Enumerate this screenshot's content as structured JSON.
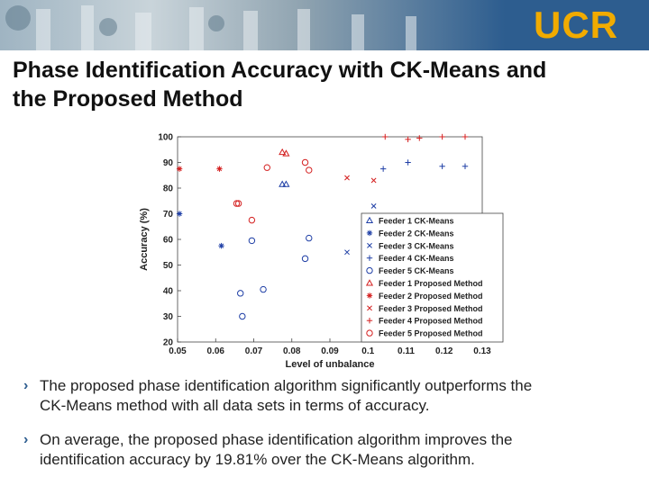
{
  "header": {
    "logo_text": "UCR",
    "brand_color": "#2d5d8f",
    "logo_color": "#f1ab00"
  },
  "slide": {
    "title_line1": "Phase Identification Accuracy with CK-Means and",
    "title_line2": "the Proposed Method"
  },
  "bullets": [
    {
      "icon": "chevron-right-icon",
      "line1": "The proposed phase identification algorithm significantly outperforms the",
      "line2": "CK-Means method with all data sets in terms of accuracy."
    },
    {
      "icon": "chevron-right-icon",
      "line1": "On average, the proposed phase identification algorithm improves the",
      "line2": "identification accuracy by 19.81% over the CK-Means algorithm."
    }
  ],
  "chart_data": {
    "type": "scatter",
    "xlabel": "Level of unbalance",
    "ylabel": "Accuracy (%)",
    "xlim": [
      0.05,
      0.13
    ],
    "ylim": [
      20,
      100
    ],
    "xticks": [
      "0.05",
      "0.06",
      "0.07",
      "0.08",
      "0.09",
      "0.1",
      "0.11",
      "0.12",
      "0.13"
    ],
    "yticks": [
      "20",
      "30",
      "40",
      "50",
      "60",
      "70",
      "80",
      "90",
      "100"
    ],
    "grid": false,
    "legend_position": "right-bottom",
    "series": [
      {
        "name": "Feeder 1 CK-Means",
        "color": "#1f3fa6",
        "marker": "triangle",
        "points": [
          [
            0.0775,
            81.5
          ],
          [
            0.0785,
            81.5
          ]
        ]
      },
      {
        "name": "Feeder 2 CK-Means",
        "color": "#1f3fa6",
        "marker": "star",
        "points": [
          [
            0.0505,
            70
          ],
          [
            0.0615,
            57.5
          ]
        ]
      },
      {
        "name": "Feeder 3 CK-Means",
        "color": "#1f3fa6",
        "marker": "x",
        "points": [
          [
            0.0945,
            55
          ],
          [
            0.1015,
            73
          ]
        ]
      },
      {
        "name": "Feeder 4 CK-Means",
        "color": "#1f3fa6",
        "marker": "plus",
        "points": [
          [
            0.104,
            87.5
          ],
          [
            0.1105,
            90
          ],
          [
            0.1195,
            88.5
          ],
          [
            0.1255,
            88.5
          ]
        ]
      },
      {
        "name": "Feeder 5 CK-Means",
        "color": "#1f3fa6",
        "marker": "circle",
        "points": [
          [
            0.0665,
            39
          ],
          [
            0.067,
            30
          ],
          [
            0.0695,
            59.5
          ],
          [
            0.0725,
            40.5
          ],
          [
            0.0835,
            52.5
          ],
          [
            0.0845,
            60.5
          ]
        ]
      },
      {
        "name": "Feeder 1 Proposed Method",
        "color": "#d42020",
        "marker": "triangle",
        "points": [
          [
            0.0775,
            94
          ],
          [
            0.0785,
            93.5
          ]
        ]
      },
      {
        "name": "Feeder 2 Proposed Method",
        "color": "#d42020",
        "marker": "star",
        "points": [
          [
            0.0505,
            87.5
          ],
          [
            0.061,
            87.5
          ]
        ]
      },
      {
        "name": "Feeder 3 Proposed Method",
        "color": "#d42020",
        "marker": "x",
        "points": [
          [
            0.0945,
            84
          ],
          [
            0.1015,
            83
          ]
        ]
      },
      {
        "name": "Feeder 4 Proposed Method",
        "color": "#d42020",
        "marker": "plus",
        "points": [
          [
            0.1045,
            100
          ],
          [
            0.1105,
            99
          ],
          [
            0.1135,
            99.5
          ],
          [
            0.1195,
            100
          ],
          [
            0.1255,
            100
          ]
        ]
      },
      {
        "name": "Feeder 5 Proposed Method",
        "color": "#d42020",
        "marker": "circle",
        "points": [
          [
            0.0655,
            74
          ],
          [
            0.066,
            74
          ],
          [
            0.0695,
            67.5
          ],
          [
            0.0735,
            88
          ],
          [
            0.0835,
            90
          ],
          [
            0.0845,
            87
          ]
        ]
      }
    ]
  }
}
